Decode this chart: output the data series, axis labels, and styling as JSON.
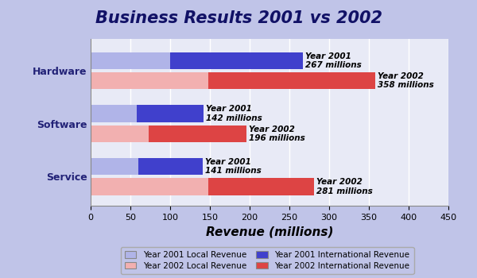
{
  "title": "Business Results 2001 vs 2002",
  "categories": [
    "Hardware",
    "Software",
    "Service"
  ],
  "local_2001": [
    100,
    58,
    60
  ],
  "intl_2001": [
    167,
    84,
    81
  ],
  "local_2002": [
    148,
    73,
    148
  ],
  "intl_2002": [
    210,
    123,
    133
  ],
  "totals_2001": [
    267,
    142,
    141
  ],
  "totals_2002": [
    358,
    196,
    281
  ],
  "color_local_2001": "#b0b4e8",
  "color_intl_2001": "#4040cc",
  "color_local_2002": "#f2b0b0",
  "color_intl_2002": "#dd4444",
  "xlabel": "Revenue (millions)",
  "xlim": [
    0,
    450
  ],
  "xticks": [
    0,
    50,
    100,
    150,
    200,
    250,
    300,
    350,
    400,
    450
  ],
  "bg_outer": "#c0c4e8",
  "bg_title": "#8888dd",
  "bg_inner": "#e8eaf6",
  "title_fontsize": 15,
  "annot_fontsize": 7.5,
  "legend_labels": [
    "Year 2001 Local Revenue",
    "Year 2002 Local Revenue",
    "Year 2001 International Revenue",
    "Year 2002 International Revenue"
  ]
}
